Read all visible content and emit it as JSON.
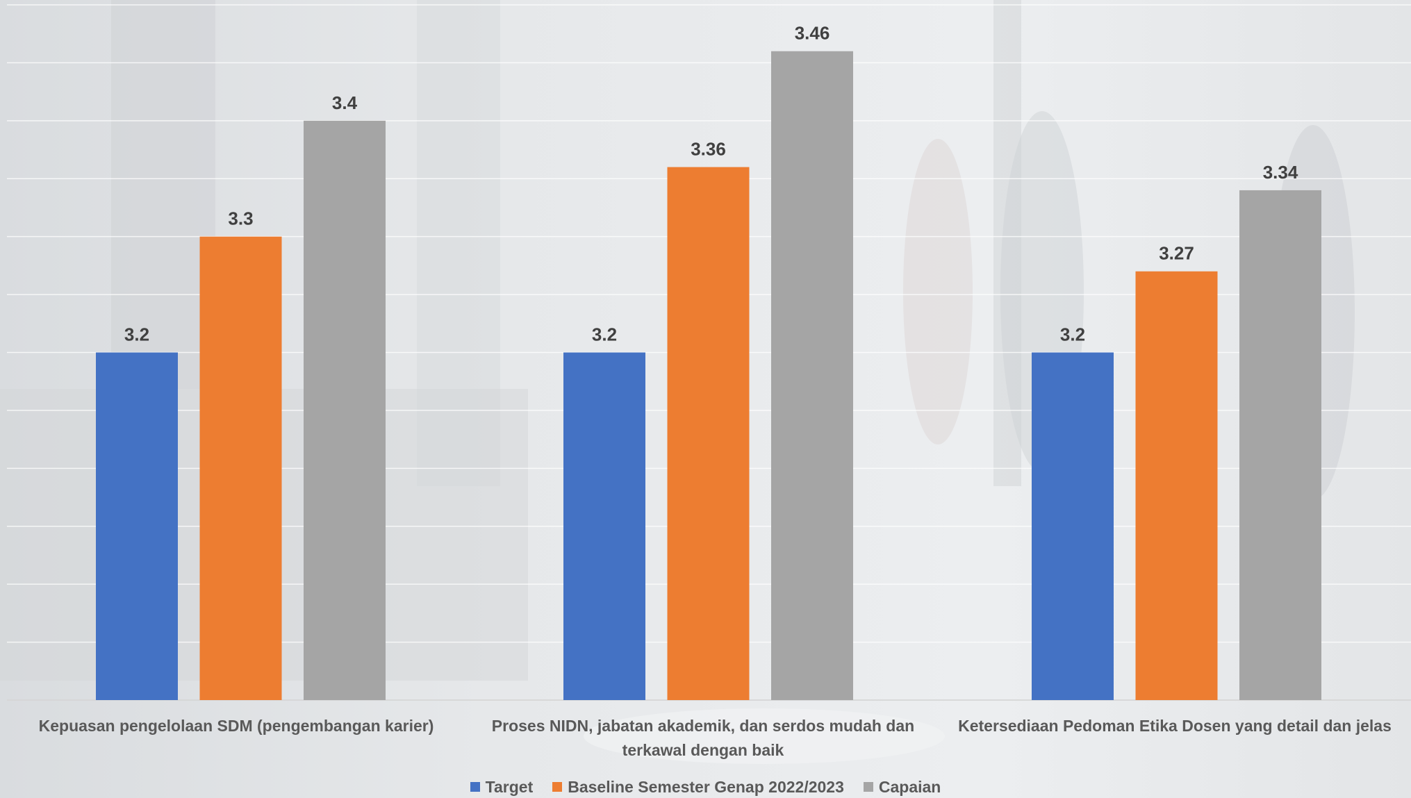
{
  "chart_data": {
    "type": "bar",
    "title": "",
    "xlabel": "",
    "ylabel": "",
    "categories": [
      "Kepuasan pengelolaan SDM (pengembangan karier)",
      "Proses NIDN, jabatan akademik, dan serdos mudah dan terkawal dengan baik",
      "Ketersediaan Pedoman Etika Dosen yang detail dan jelas"
    ],
    "series": [
      {
        "name": "Target",
        "color": "#4472c4",
        "values": [
          3.2,
          3.2,
          3.2
        ]
      },
      {
        "name": "Baseline Semester Genap 2022/2023",
        "color": "#ed7d31",
        "values": [
          3.3,
          3.36,
          3.27
        ]
      },
      {
        "name": "Capaian",
        "color": "#a5a5a5",
        "values": [
          3.4,
          3.46,
          3.34
        ]
      }
    ],
    "data_labels": [
      [
        "3.2",
        "3.2",
        "3.2"
      ],
      [
        "3.3",
        "3.36",
        "3.27"
      ],
      [
        "3.4",
        "3.46",
        "3.34"
      ]
    ],
    "ylim": [
      2.9,
      3.5
    ],
    "grid": true,
    "legend_position": "bottom"
  }
}
